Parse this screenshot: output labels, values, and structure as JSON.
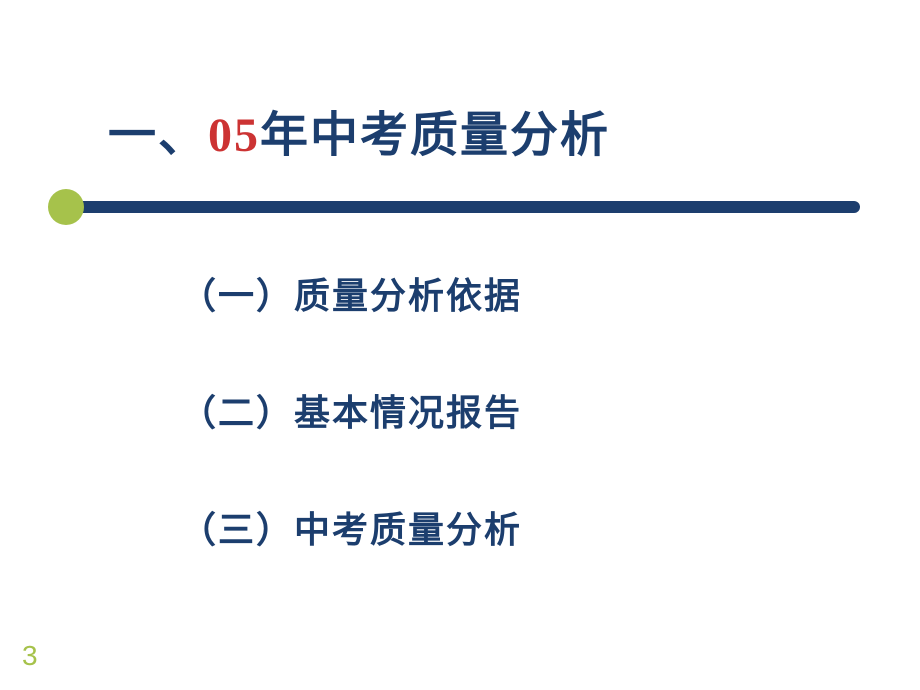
{
  "slide": {
    "title_prefix": "一、",
    "title_highlight": "05",
    "title_suffix": "年中考质量分析",
    "body_items": [
      "（一）质量分析依据",
      "（二）基本情况报告",
      "（三）中考质量分析"
    ],
    "page_number": "3"
  },
  "styling": {
    "background_color": "#ffffff",
    "title_color": "#1c3e6e",
    "title_highlight_color": "#cc3333",
    "body_text_color": "#1c3e6e",
    "accent_color": "#a6c24b",
    "bar_color": "#1c3e6e",
    "title_fontsize": 48,
    "body_fontsize": 36,
    "page_number_fontsize": 28
  }
}
